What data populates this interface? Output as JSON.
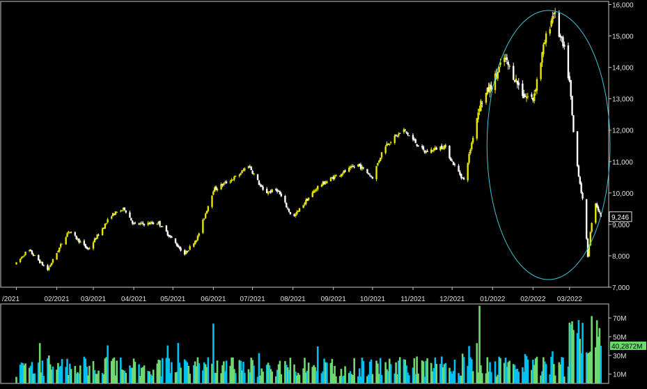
{
  "chart_data": [
    {
      "type": "candlestick",
      "title": "",
      "xlabel": "",
      "ylabel": "",
      "x_tick_labels": [
        "/2021",
        "02/2021",
        "03/2021",
        "04/2021",
        "05/2021",
        "06/2021",
        "07/2021",
        "08/2021",
        "09/2021",
        "10/2021",
        "11/2021",
        "12/2021",
        "01/2022",
        "02/2022",
        "03/2022"
      ],
      "y_tick_labels": [
        "7,000",
        "8,000",
        "9,000",
        "10,000",
        "11,000",
        "12,000",
        "13,000",
        "14,000",
        "15,000",
        "16,000"
      ],
      "ylim": [
        7000,
        16100
      ],
      "last_price_label": "9,246",
      "last_price": 9246,
      "up_color": "#e6e600",
      "down_color": "#ffffff",
      "annotation": {
        "shape": "ellipse",
        "color": "#40c8d8",
        "covers_months": [
          "01/2022",
          "02/2022",
          "03/2022"
        ]
      },
      "trend_anchors": [
        [
          "2021-01-01",
          7750
        ],
        [
          "2021-01-10",
          8200
        ],
        [
          "2021-01-25",
          7550
        ],
        [
          "2021-02-10",
          8800
        ],
        [
          "2021-02-25",
          8200
        ],
        [
          "2021-03-15",
          9300
        ],
        [
          "2021-03-25",
          9500
        ],
        [
          "2021-04-01",
          9000
        ],
        [
          "2021-04-20",
          9050
        ],
        [
          "2021-05-01",
          8500
        ],
        [
          "2021-05-10",
          8050
        ],
        [
          "2021-05-20",
          8600
        ],
        [
          "2021-06-01",
          10100
        ],
        [
          "2021-06-20",
          10550
        ],
        [
          "2021-06-28",
          10900
        ],
        [
          "2021-07-10",
          10000
        ],
        [
          "2021-07-20",
          10100
        ],
        [
          "2021-08-01",
          9200
        ],
        [
          "2021-08-10",
          9700
        ],
        [
          "2021-08-20",
          10200
        ],
        [
          "2021-09-01",
          10500
        ],
        [
          "2021-09-20",
          10900
        ],
        [
          "2021-10-01",
          10500
        ],
        [
          "2021-10-10",
          11500
        ],
        [
          "2021-10-25",
          12000
        ],
        [
          "2021-11-10",
          11300
        ],
        [
          "2021-11-25",
          11500
        ],
        [
          "2021-12-01",
          11000
        ],
        [
          "2021-12-10",
          10400
        ],
        [
          "2021-12-22",
          12800
        ],
        [
          "2022-01-01",
          13500
        ],
        [
          "2022-01-10",
          14300
        ],
        [
          "2022-01-25",
          13100
        ],
        [
          "2022-02-01",
          13000
        ],
        [
          "2022-02-10",
          14800
        ],
        [
          "2022-02-17",
          15800
        ],
        [
          "2022-02-20",
          15200
        ],
        [
          "2022-02-25",
          14500
        ],
        [
          "2022-03-01",
          13500
        ],
        [
          "2022-03-05",
          11400
        ],
        [
          "2022-03-12",
          9500
        ],
        [
          "2022-03-15",
          8000
        ],
        [
          "2022-03-20",
          9800
        ],
        [
          "2022-03-25",
          9246
        ]
      ],
      "ohlc_note": "daily candles approximated along trend_anchors"
    },
    {
      "type": "bar",
      "title": "",
      "y_tick_labels": [
        "10M",
        "30M",
        "50M",
        "70M"
      ],
      "ylim": [
        0,
        85
      ],
      "unit": "M",
      "last_volume_label": "40,2872M",
      "last_volume": 40.2872,
      "colors": [
        "#00c0f0",
        "#70d870"
      ],
      "spikes": [
        {
          "date": "2021-06-01",
          "value": 64
        },
        {
          "date": "2021-12-22",
          "value": 83
        },
        {
          "date": "2022-03-18",
          "value": 72
        }
      ],
      "values_note": "daily volumes mostly 8M-30M, elevated 40M-70M in March 2022"
    }
  ]
}
